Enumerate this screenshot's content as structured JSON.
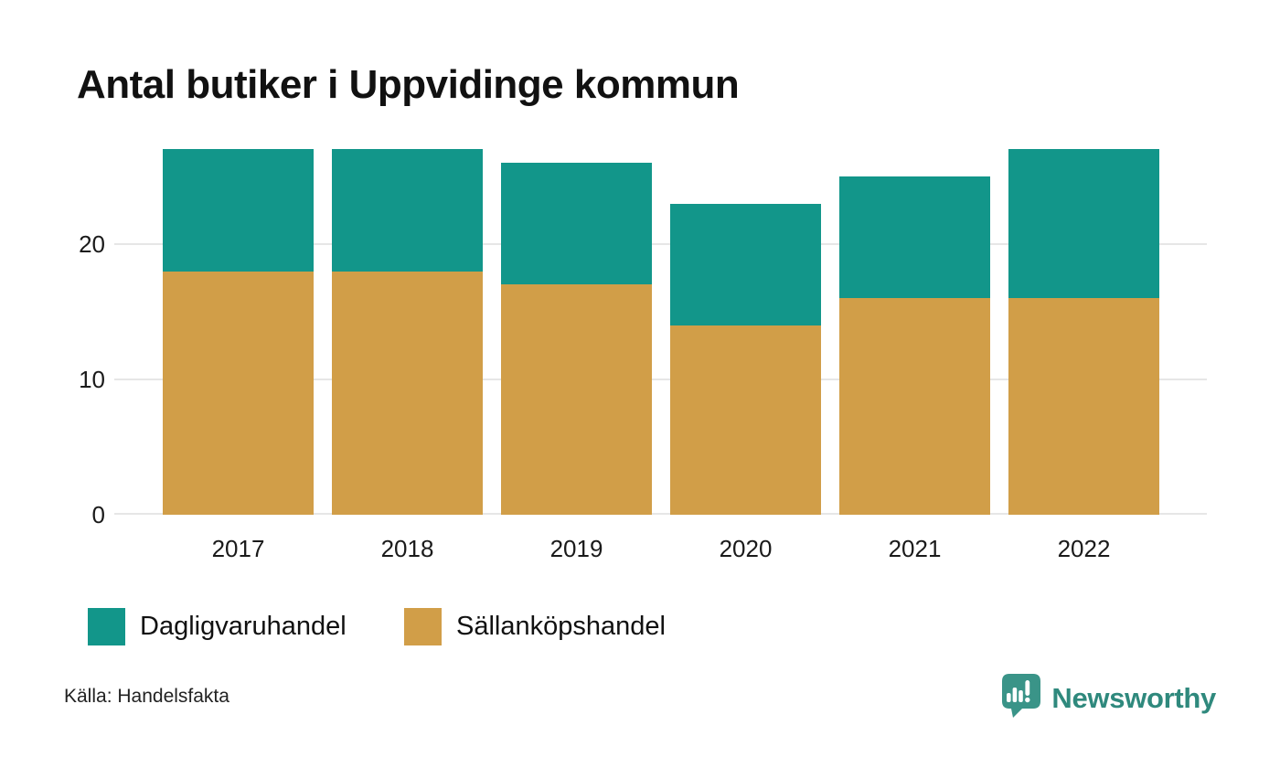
{
  "title": "Antal butiker i Uppvidinge kommun",
  "source": "Källa: Handelsfakta",
  "brand": {
    "name": "Newsworthy",
    "logo_icon": "speech-bubble-bar-chart-icon",
    "color": "#2f897d",
    "bubble_color": "#3a9488"
  },
  "colors": {
    "dagligvaruhandel": "#12968a",
    "sallankopshandel": "#d19e48",
    "gridline": "#e6e6e6",
    "text": "#1a1a1a"
  },
  "legend": [
    {
      "label": "Dagligvaruhandel",
      "color": "#12968a"
    },
    {
      "label": "Sällanköpshandel",
      "color": "#d19e48"
    }
  ],
  "chart_data": {
    "type": "bar",
    "stacked": true,
    "title": "Antal butiker i Uppvidinge kommun",
    "categories": [
      "2017",
      "2018",
      "2019",
      "2020",
      "2021",
      "2022"
    ],
    "series": [
      {
        "name": "Sällanköpshandel",
        "color": "#d19e48",
        "values": [
          18,
          18,
          17,
          14,
          16,
          16
        ]
      },
      {
        "name": "Dagligvaruhandel",
        "color": "#12968a",
        "values": [
          9,
          9,
          9,
          9,
          9,
          11
        ]
      }
    ],
    "totals": [
      27,
      27,
      26,
      23,
      25,
      27
    ],
    "xlabel": "",
    "ylabel": "",
    "y_ticks": [
      0,
      10,
      20
    ],
    "ylim": [
      0,
      27.5
    ],
    "grid": true,
    "legend_position": "bottom-left"
  }
}
